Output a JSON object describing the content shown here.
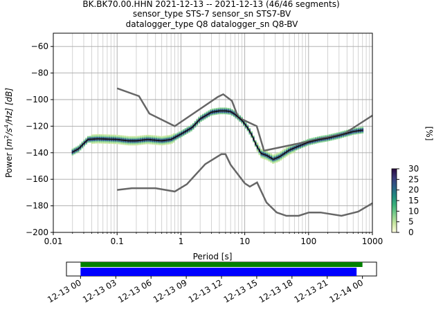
{
  "chart_data": {
    "type": "heatmap",
    "title_lines": [
      "BK.BK70.00.HHN   2021-12-13 -- 2021-12-13  (46/46 segments)",
      "sensor_type STS-7 sensor_sn STS7-BV",
      "datalogger_type Q8 datalogger_sn Q8-BV"
    ],
    "xlabel": "Period [s]",
    "ylabel": "Power [m²/s⁴/Hz] [dB]",
    "ylabel_parts": {
      "prefix": "Power [",
      "m": "m",
      "sup2": "2",
      "s": "/s",
      "sup4": "4",
      "hz": "/Hz] [dB]"
    },
    "xscale": "log",
    "xlim": [
      0.01,
      1000
    ],
    "ylim": [
      -200,
      -50
    ],
    "x_ticks": [
      {
        "value": 0.01,
        "label": "0.01"
      },
      {
        "value": 0.1,
        "label": "0.1"
      },
      {
        "value": 1,
        "label": "1"
      },
      {
        "value": 10,
        "label": "10"
      },
      {
        "value": 100,
        "label": "100"
      },
      {
        "value": 1000,
        "label": "1000"
      }
    ],
    "y_ticks": [
      {
        "value": -60,
        "label": "−60"
      },
      {
        "value": -80,
        "label": "−80"
      },
      {
        "value": -100,
        "label": "−100"
      },
      {
        "value": -120,
        "label": "−120"
      },
      {
        "value": -140,
        "label": "−140"
      },
      {
        "value": -160,
        "label": "−160"
      },
      {
        "value": -180,
        "label": "−180"
      },
      {
        "value": -200,
        "label": "−200"
      }
    ],
    "grid": true,
    "colorbar": {
      "label": "[%]",
      "range": [
        0,
        30
      ],
      "ticks": [
        {
          "value": 0,
          "label": "0"
        },
        {
          "value": 5,
          "label": "5"
        },
        {
          "value": 10,
          "label": "10"
        },
        {
          "value": 15,
          "label": "15"
        },
        {
          "value": 20,
          "label": "20"
        },
        {
          "value": 25,
          "label": "25"
        },
        {
          "value": 30,
          "label": "30"
        }
      ],
      "colors": [
        "#ffffe0",
        "#c8e6a0",
        "#7fcf8e",
        "#3ab17a",
        "#1f8a7f",
        "#2b5f86",
        "#3b3a7a",
        "#2a0a3f"
      ]
    },
    "nhnm": [
      [
        0.1,
        -168
      ],
      [
        0.17,
        -166.7
      ],
      [
        0.4,
        -166.7
      ],
      [
        0.8,
        -169.2
      ],
      [
        1.24,
        -163.7
      ],
      [
        2.4,
        -148.6
      ],
      [
        4.3,
        -141.1
      ],
      [
        5.0,
        -141.1
      ],
      [
        6.0,
        -149
      ],
      [
        10,
        -163
      ],
      [
        12,
        -165.5
      ],
      [
        15.6,
        -162.4
      ],
      [
        21.9,
        -177.5
      ],
      [
        31.6,
        -185
      ],
      [
        45,
        -187.5
      ],
      [
        70,
        -187.5
      ],
      [
        101,
        -185
      ],
      [
        154,
        -185
      ],
      [
        328,
        -187.5
      ],
      [
        600,
        -184.4
      ],
      [
        1000,
        -178
      ]
    ],
    "nlnm_placeholder": "",
    "nhnm_high": [
      [
        0.1,
        -91.5
      ],
      [
        0.22,
        -97.4
      ],
      [
        0.32,
        -110.5
      ],
      [
        0.8,
        -120
      ],
      [
        3.8,
        -97.9
      ],
      [
        4.6,
        -96
      ],
      [
        6.3,
        -101
      ],
      [
        7.9,
        -113.5
      ],
      [
        15.4,
        -120
      ],
      [
        20,
        -138.5
      ],
      [
        354.8,
        -126
      ],
      [
        1000,
        -112
      ]
    ],
    "median": [
      [
        0.02,
        -139.5
      ],
      [
        0.025,
        -137
      ],
      [
        0.03,
        -133
      ],
      [
        0.035,
        -130
      ],
      [
        0.05,
        -129.5
      ],
      [
        0.1,
        -130
      ],
      [
        0.15,
        -131
      ],
      [
        0.2,
        -131
      ],
      [
        0.3,
        -130
      ],
      [
        0.5,
        -131
      ],
      [
        0.7,
        -130
      ],
      [
        1,
        -126
      ],
      [
        1.5,
        -121
      ],
      [
        2,
        -114.5
      ],
      [
        3,
        -109.5
      ],
      [
        4,
        -108.5
      ],
      [
        5,
        -108.5
      ],
      [
        6,
        -109
      ],
      [
        7,
        -111
      ],
      [
        9,
        -115.5
      ],
      [
        11,
        -121
      ],
      [
        13,
        -127
      ],
      [
        15,
        -134
      ],
      [
        18,
        -140.5
      ],
      [
        22,
        -142
      ],
      [
        28,
        -145
      ],
      [
        35,
        -143
      ],
      [
        50,
        -138
      ],
      [
        70,
        -135
      ],
      [
        100,
        -132
      ],
      [
        150,
        -130
      ],
      [
        200,
        -129
      ],
      [
        300,
        -127
      ],
      [
        500,
        -124
      ],
      [
        700,
        -123
      ]
    ],
    "time_bar": {
      "tick_labels": [
        "12-13 00",
        "12-13 03",
        "12-13 06",
        "12-13 09",
        "12-13 12",
        "12-13 15",
        "12-13 18",
        "12-13 21",
        "12-14 00"
      ],
      "tick_hours": [
        0,
        3,
        6,
        9,
        12,
        15,
        18,
        21,
        24
      ],
      "xlim_hours": [
        -1.2,
        25.2
      ],
      "green_span_hours": [
        0,
        24.0
      ],
      "blue_span_hours": [
        0,
        23.5
      ],
      "green_color": "#008000",
      "blue_color": "#0000ff"
    }
  }
}
